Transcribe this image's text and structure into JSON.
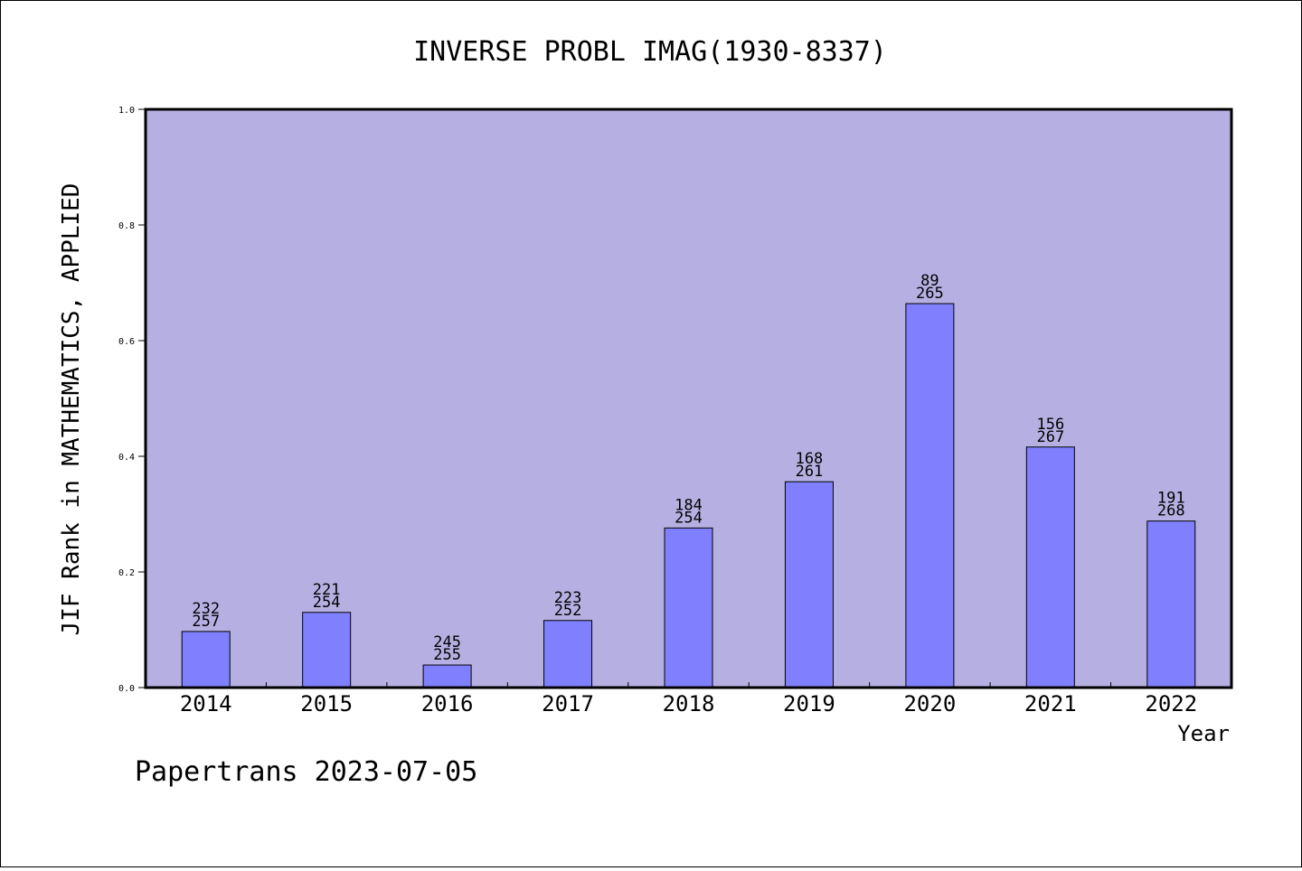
{
  "chart_data": {
    "type": "bar",
    "title": "INVERSE PROBL IMAG(1930-8337)",
    "xlabel": "Year",
    "ylabel": "JIF Rank in MATHEMATICS, APPLIED",
    "ylim": [
      0,
      1
    ],
    "yticks": [
      "0.0",
      "0.2",
      "0.4",
      "0.6",
      "0.8",
      "1.0"
    ],
    "categories": [
      "2014",
      "2015",
      "2016",
      "2017",
      "2018",
      "2019",
      "2020",
      "2021",
      "2022"
    ],
    "values": [
      0.097,
      0.13,
      0.039,
      0.116,
      0.276,
      0.356,
      0.664,
      0.416,
      0.288
    ],
    "rank_labels": [
      "232",
      "221",
      "245",
      "223",
      "184",
      "168",
      "89",
      "156",
      "191"
    ],
    "total_labels": [
      "257",
      "254",
      "255",
      "252",
      "254",
      "261",
      "265",
      "267",
      "268"
    ],
    "grid": false,
    "legend": "none",
    "colors": {
      "plot_bg": "#b6b0e2",
      "bar": "#8080ff",
      "bar_edge": "#000000"
    }
  },
  "footer": "Papertrans 2023-07-05"
}
